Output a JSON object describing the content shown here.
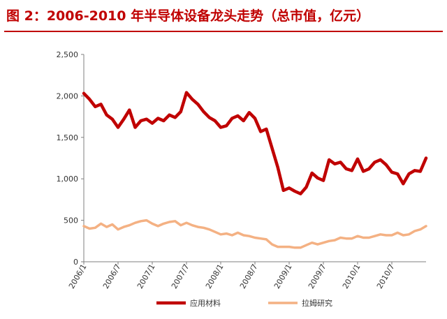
{
  "title": "图 2：2006-2010 年半导体设备龙头走势（总市值，亿元）",
  "colors": {
    "title": "#c00000",
    "series_applied": "#c00000",
    "series_lam": "#f4b183"
  },
  "chart_data": {
    "type": "line",
    "title": "图 2：2006-2010 年半导体设备龙头走势（总市值，亿元）",
    "xlabel": "",
    "ylabel": "",
    "ylim": [
      0,
      2500
    ],
    "yticks": [
      "0",
      "500",
      "1,000",
      "1,500",
      "2,000",
      "2,500"
    ],
    "ytick_values": [
      0,
      500,
      1000,
      1500,
      2000,
      2500
    ],
    "xticks": [
      "2006/1",
      "2006/7",
      "2007/1",
      "2007/7",
      "2008/1",
      "2008/7",
      "2009/1",
      "2009/7",
      "2010/1",
      "2010/7"
    ],
    "xtick_index": [
      0,
      6,
      12,
      18,
      24,
      30,
      36,
      42,
      48,
      54
    ],
    "grid": false,
    "legend_position": "bottom",
    "series": [
      {
        "name": "应用材料",
        "values": [
          2030,
          1960,
          1870,
          1900,
          1770,
          1720,
          1620,
          1720,
          1830,
          1620,
          1700,
          1720,
          1670,
          1730,
          1700,
          1770,
          1740,
          1810,
          2040,
          1960,
          1900,
          1810,
          1740,
          1700,
          1620,
          1640,
          1730,
          1760,
          1700,
          1800,
          1730,
          1570,
          1600,
          1370,
          1140,
          860,
          890,
          850,
          820,
          900,
          1070,
          1010,
          980,
          1230,
          1180,
          1200,
          1120,
          1100,
          1240,
          1090,
          1120,
          1200,
          1230,
          1170,
          1080,
          1060,
          940,
          1060,
          1100,
          1090,
          1250
        ]
      },
      {
        "name": "拉姆研究",
        "values": [
          430,
          400,
          410,
          460,
          420,
          450,
          390,
          420,
          440,
          470,
          490,
          500,
          460,
          430,
          460,
          480,
          490,
          440,
          470,
          440,
          420,
          410,
          390,
          360,
          330,
          340,
          320,
          350,
          320,
          310,
          290,
          280,
          270,
          210,
          180,
          180,
          180,
          170,
          170,
          200,
          230,
          210,
          230,
          250,
          260,
          290,
          280,
          280,
          310,
          290,
          290,
          310,
          330,
          320,
          320,
          350,
          320,
          330,
          370,
          390,
          430
        ]
      }
    ]
  }
}
